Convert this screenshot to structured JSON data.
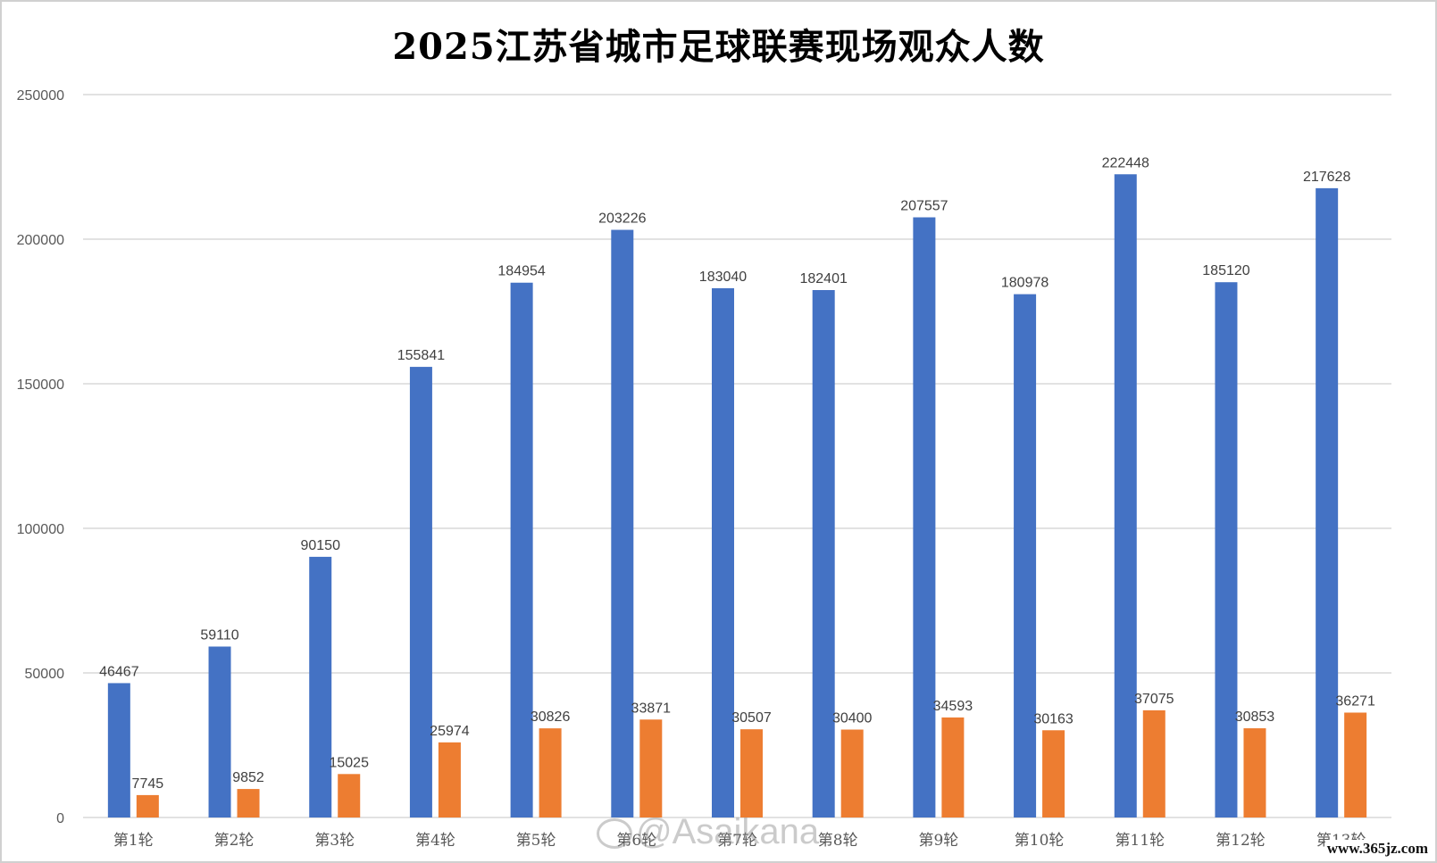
{
  "chart_data": {
    "type": "bar",
    "title": "2025江苏省城市足球联赛现场观众人数",
    "categories": [
      "第1轮",
      "第2轮",
      "第3轮",
      "第4轮",
      "第5轮",
      "第6轮",
      "第7轮",
      "第8轮",
      "第9轮",
      "第10轮",
      "第11轮",
      "第12轮",
      "第13轮"
    ],
    "series": [
      {
        "color": "#4472C4",
        "values": [
          46467,
          59110,
          90150,
          155841,
          184954,
          203226,
          183040,
          182401,
          207557,
          180978,
          222448,
          185120,
          217628
        ]
      },
      {
        "color": "#ED7D31",
        "values": [
          7745,
          9852,
          15025,
          25974,
          30826,
          33871,
          30507,
          30400,
          34593,
          30163,
          37075,
          30853,
          36271
        ]
      }
    ],
    "ylim": [
      0,
      250000
    ],
    "yticks": [
      0,
      50000,
      100000,
      150000,
      200000,
      250000
    ],
    "grid": true,
    "data_labels": true
  },
  "watermark": {
    "icon": "weibo-icon",
    "text": "@Asaikana"
  },
  "site_mark": "www.365jz.com"
}
